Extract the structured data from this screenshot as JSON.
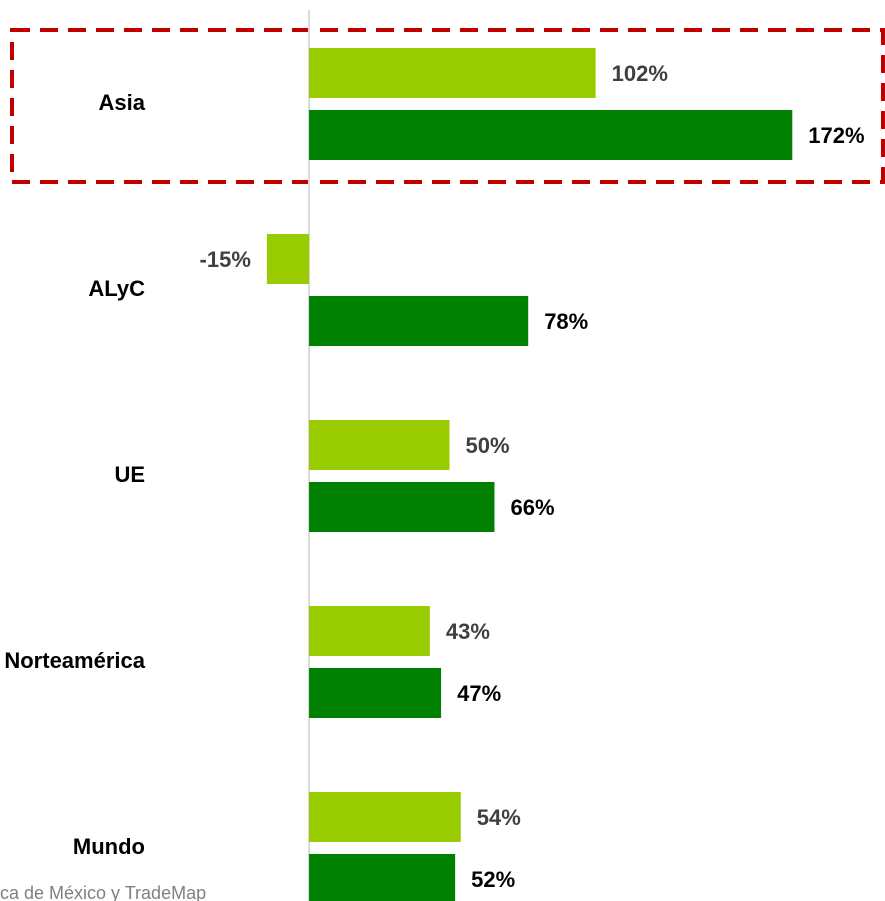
{
  "chart_data": {
    "type": "hbar",
    "categories": [
      "Asia",
      "ALyC",
      "UE",
      "Norteamérica",
      "Mundo"
    ],
    "series": [
      {
        "color": "#99cc00",
        "values": [
          102,
          -15,
          50,
          43,
          54
        ],
        "value_labels": [
          "102%",
          "-15%",
          "50%",
          "43%",
          "54%"
        ]
      },
      {
        "color": "#008000",
        "values": [
          172,
          78,
          66,
          47,
          52
        ],
        "value_labels": [
          "172%",
          "78%",
          "66%",
          "47%",
          "52%"
        ]
      }
    ],
    "xlim": [
      -110,
      205
    ],
    "source": "ca de México y TradeMap"
  }
}
